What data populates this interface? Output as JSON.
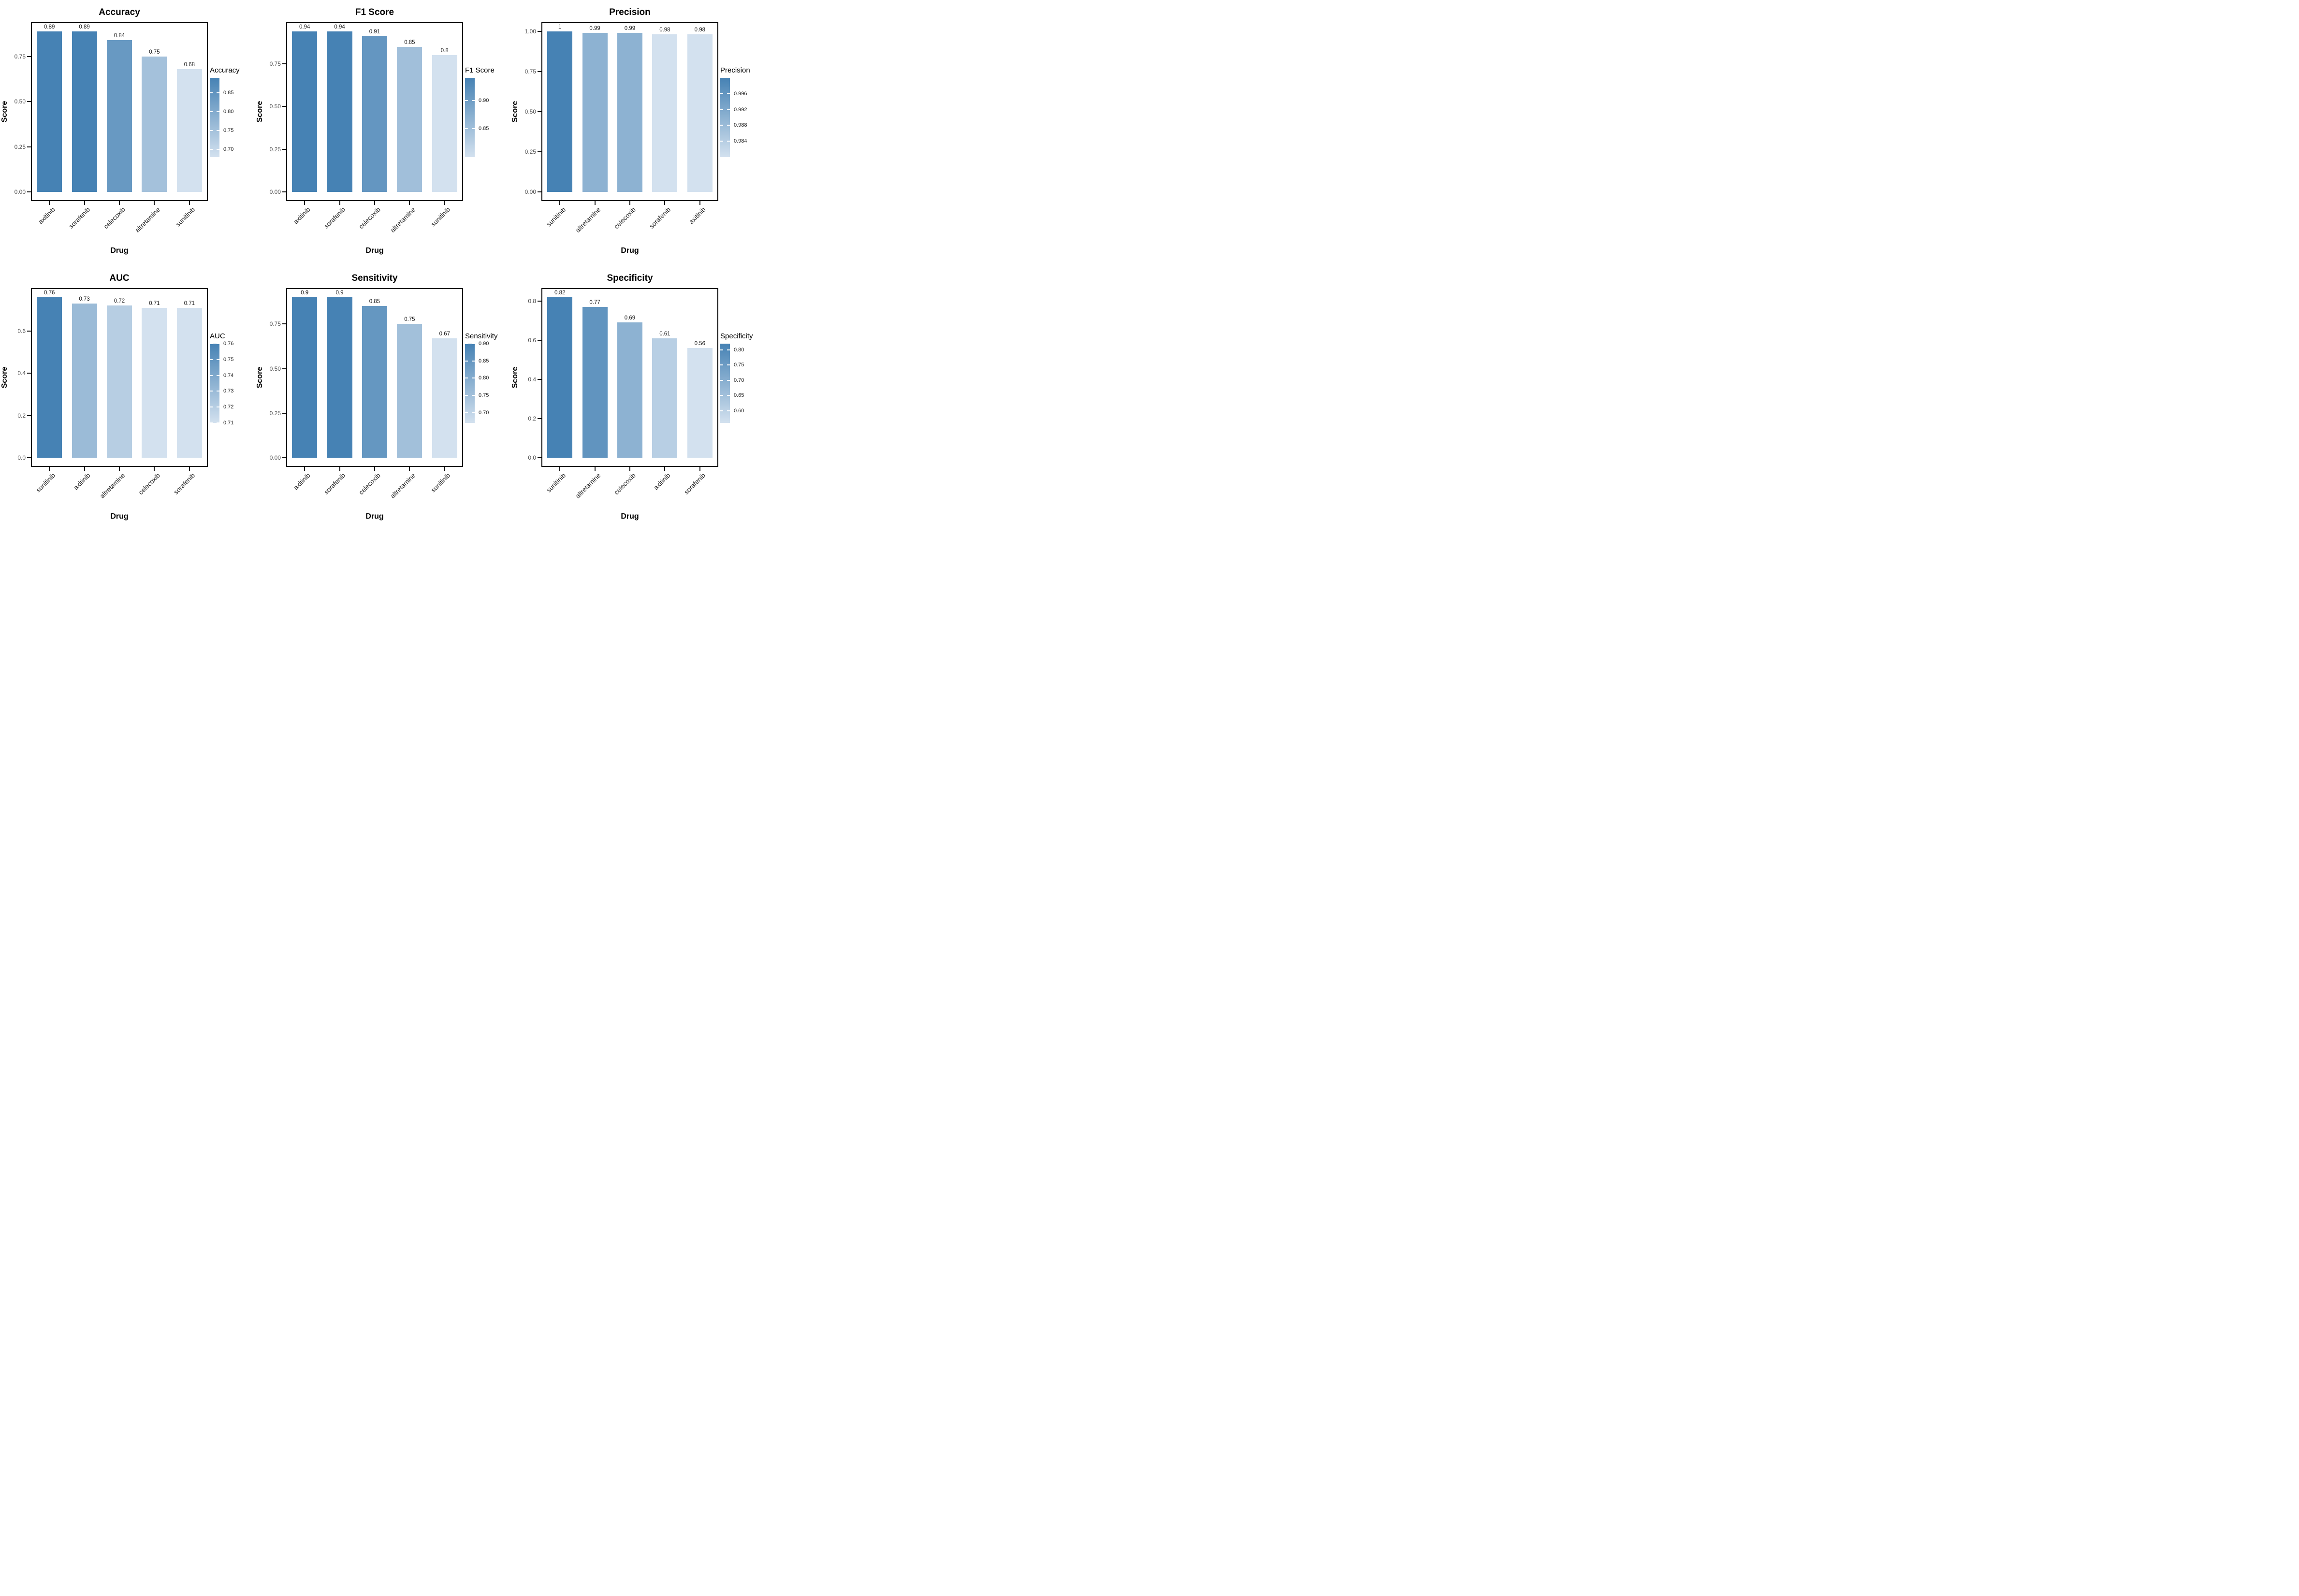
{
  "colors": {
    "bar_low": "#D3E1EF",
    "bar_high": "#4682B4",
    "axis_text": "#4D4D4D",
    "label_text": "#1A1A1A",
    "title_text": "#000000",
    "panel_border": "#000000",
    "background": "#FFFFFF"
  },
  "chart_data": [
    {
      "type": "bar",
      "title": "Accuracy",
      "xlabel": "Drug",
      "ylabel": "Score",
      "categories": [
        "axitinib",
        "sorafenib",
        "celecoxib",
        "altretamine",
        "sunitinib"
      ],
      "values": [
        0.89,
        0.89,
        0.84,
        0.75,
        0.68
      ],
      "value_labels": [
        "0.89",
        "0.89",
        "0.84",
        "0.75",
        "0.68"
      ],
      "y_tick_values": [
        0.0,
        0.25,
        0.5,
        0.75
      ],
      "y_tick_labels": [
        "0.00",
        "0.25",
        "0.50",
        "0.75"
      ],
      "legend": {
        "title": "Accuracy",
        "tick_values": [
          0.85,
          0.8,
          0.75,
          0.7
        ],
        "tick_labels": [
          "0.85",
          "0.80",
          "0.75",
          "0.70"
        ]
      }
    },
    {
      "type": "bar",
      "title": "F1 Score",
      "xlabel": "Drug",
      "ylabel": "Score",
      "categories": [
        "axitinib",
        "sorafenib",
        "celecoxib",
        "altretamine",
        "sunitinib"
      ],
      "values": [
        0.94,
        0.94,
        0.91,
        0.85,
        0.8
      ],
      "value_labels": [
        "0.94",
        "0.94",
        "0.91",
        "0.85",
        "0.8"
      ],
      "y_tick_values": [
        0.0,
        0.25,
        0.5,
        0.75
      ],
      "y_tick_labels": [
        "0.00",
        "0.25",
        "0.50",
        "0.75"
      ],
      "legend": {
        "title": "F1 Score",
        "tick_values": [
          0.9,
          0.85
        ],
        "tick_labels": [
          "0.90",
          "0.85"
        ]
      }
    },
    {
      "type": "bar",
      "title": "Precision",
      "xlabel": "Drug",
      "ylabel": "Score",
      "categories": [
        "sunitinib",
        "altretamine",
        "celecoxib",
        "sorafenib",
        "axitinib"
      ],
      "values": [
        1.0,
        0.99,
        0.99,
        0.98,
        0.98
      ],
      "value_labels": [
        "1",
        "0.99",
        "0.99",
        "0.98",
        "0.98"
      ],
      "y_tick_values": [
        0.0,
        0.25,
        0.5,
        0.75,
        1.0
      ],
      "y_tick_labels": [
        "0.00",
        "0.25",
        "0.50",
        "0.75",
        "1.00"
      ],
      "legend": {
        "title": "Precision",
        "tick_values": [
          0.996,
          0.992,
          0.988,
          0.984
        ],
        "tick_labels": [
          "0.996",
          "0.992",
          "0.988",
          "0.984"
        ]
      }
    },
    {
      "type": "bar",
      "title": "AUC",
      "xlabel": "Drug",
      "ylabel": "Score",
      "categories": [
        "sunitinib",
        "axitinib",
        "altretamine",
        "celecoxib",
        "sorafenib"
      ],
      "values": [
        0.76,
        0.73,
        0.72,
        0.71,
        0.71
      ],
      "value_labels": [
        "0.76",
        "0.73",
        "0.72",
        "0.71",
        "0.71"
      ],
      "y_tick_values": [
        0.0,
        0.2,
        0.4,
        0.6
      ],
      "y_tick_labels": [
        "0.0",
        "0.2",
        "0.4",
        "0.6"
      ],
      "legend": {
        "title": "AUC",
        "tick_values": [
          0.76,
          0.75,
          0.74,
          0.73,
          0.72,
          0.71
        ],
        "tick_labels": [
          "0.76",
          "0.75",
          "0.74",
          "0.73",
          "0.72",
          "0.71"
        ]
      }
    },
    {
      "type": "bar",
      "title": "Sensitivity",
      "xlabel": "Drug",
      "ylabel": "Score",
      "categories": [
        "axitinib",
        "sorafenib",
        "celecoxib",
        "altretamine",
        "sunitinib"
      ],
      "values": [
        0.9,
        0.9,
        0.85,
        0.75,
        0.67
      ],
      "value_labels": [
        "0.9",
        "0.9",
        "0.85",
        "0.75",
        "0.67"
      ],
      "y_tick_values": [
        0.0,
        0.25,
        0.5,
        0.75
      ],
      "y_tick_labels": [
        "0.00",
        "0.25",
        "0.50",
        "0.75"
      ],
      "legend": {
        "title": "Sensitivity",
        "tick_values": [
          0.9,
          0.85,
          0.8,
          0.75,
          0.7
        ],
        "tick_labels": [
          "0.90",
          "0.85",
          "0.80",
          "0.75",
          "0.70"
        ]
      }
    },
    {
      "type": "bar",
      "title": "Specificity",
      "xlabel": "Drug",
      "ylabel": "Score",
      "categories": [
        "sunitinib",
        "altretamine",
        "celecoxib",
        "axitinib",
        "sorafenib"
      ],
      "values": [
        0.82,
        0.77,
        0.69,
        0.61,
        0.56
      ],
      "value_labels": [
        "0.82",
        "0.77",
        "0.69",
        "0.61",
        "0.56"
      ],
      "y_tick_values": [
        0.0,
        0.2,
        0.4,
        0.6,
        0.8
      ],
      "y_tick_labels": [
        "0.0",
        "0.2",
        "0.4",
        "0.6",
        "0.8"
      ],
      "legend": {
        "title": "Specificity",
        "tick_values": [
          0.8,
          0.75,
          0.7,
          0.65,
          0.6
        ],
        "tick_labels": [
          "0.80",
          "0.75",
          "0.70",
          "0.65",
          "0.60"
        ]
      }
    }
  ]
}
